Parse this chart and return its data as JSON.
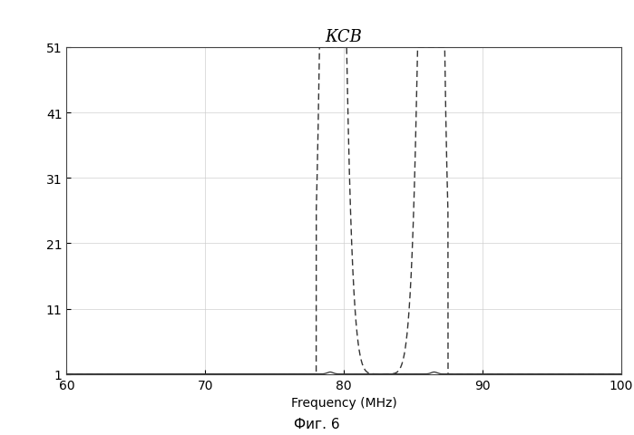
{
  "title": "КСВ",
  "xlabel": "Frequency (MHz)",
  "xlim": [
    60,
    100
  ],
  "ylim": [
    1,
    51
  ],
  "yticks": [
    1,
    11,
    21,
    31,
    41,
    51
  ],
  "xticks": [
    60,
    70,
    80,
    90,
    100
  ],
  "caption": "Фиг. 6",
  "f1": 79.0,
  "f2": 86.5,
  "f_min": 83.0,
  "curve_sharpness": 1.8,
  "line_color": "#333333",
  "bg_color": "#ffffff",
  "plot_bg": "#ffffff",
  "fig_width": 6.99,
  "fig_height": 4.81,
  "dpi": 100
}
